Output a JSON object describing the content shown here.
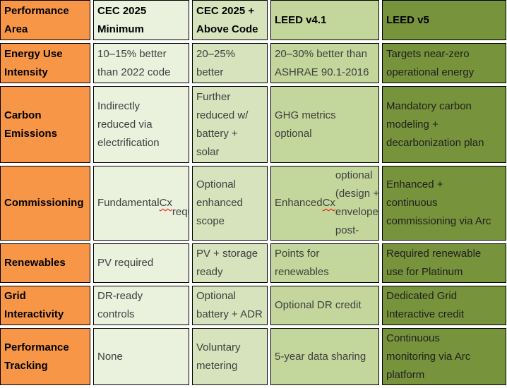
{
  "table": {
    "header": [
      "Performance\nArea",
      "CEC 2025\nMinimum",
      "CEC 2025 +\nAbove Code",
      "LEED v4.1",
      "LEED v5"
    ],
    "rows": [
      {
        "area": "Energy Use\nIntensity",
        "cells": [
          "10–15% better\nthan 2022 code",
          "20–25%\nbetter",
          "20–30% better than\nASHRAE 90.1-2016",
          "Targets near-zero\noperational energy"
        ]
      },
      {
        "area": "Carbon\nEmissions",
        "cells": [
          "Indirectly\nreduced via\nelectrification",
          "Further\nreduced w/\nbattery +\nsolar",
          "GHG metrics\noptional",
          "Mandatory carbon\nmodeling +\ndecarbonization plan"
        ]
      },
      {
        "area": "Commissioning",
        "cells": [
          "Fundamental Cx\nrequired",
          "Optional\nenhanced\nscope",
          "Enhanced Cx\noptional (design +\nenvelope + post-\noccupancy)",
          "Enhanced +\ncontinuous\ncommissioning via Arc"
        ]
      },
      {
        "area": "Renewables",
        "cells": [
          "PV required",
          "PV + storage\nready",
          "Points for\nrenewables",
          "Required renewable\nuse for Platinum"
        ]
      },
      {
        "area": "Grid\nInteractivity",
        "cells": [
          "DR-ready\ncontrols",
          "Optional\nbattery + ADR",
          "Optional DR credit",
          "Dedicated Grid\nInteractive credit"
        ]
      },
      {
        "area": "Performance\nTracking",
        "cells": [
          "None",
          "Voluntary\nmetering",
          "5-year data sharing",
          "Continuous\nmonitoring via Arc\nplatform"
        ]
      }
    ]
  },
  "spellcheck": {
    "word": "Cx"
  },
  "colors": {
    "col-area": "#F79646",
    "col-cec-min": "#EAF1DD",
    "col-cec-above": "#D6E3BC",
    "col-leed41": "#C3D69B",
    "col-leed5": "#77933C",
    "border": "#000000",
    "squiggle": "#FF0000",
    "text-dark": "#000000",
    "text-body": "#3F3F3F",
    "text-on-dark": "#1F1F1F"
  }
}
